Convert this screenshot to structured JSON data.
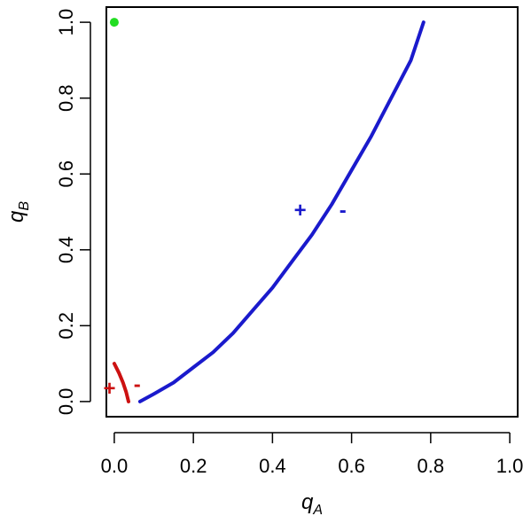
{
  "chart_data": {
    "type": "line",
    "xlabel": {
      "base": "q",
      "sub": "A"
    },
    "ylabel": {
      "base": "q",
      "sub": "B"
    },
    "xlim": [
      -0.02,
      1.02
    ],
    "ylim": [
      -0.04,
      1.04
    ],
    "x_ticks": [
      "0.0",
      "0.2",
      "0.4",
      "0.6",
      "0.8",
      "1.0"
    ],
    "x_tick_values": [
      0,
      0.2,
      0.4,
      0.6,
      0.8,
      1.0
    ],
    "y_ticks": [
      "0.0",
      "0.2",
      "0.4",
      "0.6",
      "0.8",
      "1.0"
    ],
    "y_tick_values": [
      0,
      0.2,
      0.4,
      0.6,
      0.8,
      1.0
    ],
    "grid": false,
    "series": [
      {
        "color": "#1a1acc",
        "points": [
          [
            0.065,
            0.0
          ],
          [
            0.1,
            0.02
          ],
          [
            0.15,
            0.05
          ],
          [
            0.2,
            0.09
          ],
          [
            0.25,
            0.13
          ],
          [
            0.3,
            0.18
          ],
          [
            0.35,
            0.24
          ],
          [
            0.4,
            0.3
          ],
          [
            0.45,
            0.37
          ],
          [
            0.5,
            0.44
          ],
          [
            0.55,
            0.52
          ],
          [
            0.6,
            0.61
          ],
          [
            0.65,
            0.7
          ],
          [
            0.7,
            0.8
          ],
          [
            0.75,
            0.9
          ],
          [
            0.782,
            1.0
          ]
        ]
      },
      {
        "color": "#cc1111",
        "points": [
          [
            0.0,
            0.1
          ],
          [
            0.012,
            0.075
          ],
          [
            0.022,
            0.05
          ],
          [
            0.03,
            0.025
          ],
          [
            0.036,
            0.0
          ]
        ]
      }
    ],
    "point": {
      "x": 0.0,
      "y": 1.0,
      "color": "#22dd22"
    },
    "annotations": [
      {
        "text": "+",
        "x": 0.47,
        "y": 0.505,
        "color": "#1a1acc"
      },
      {
        "text": "-",
        "x": 0.578,
        "y": 0.505,
        "color": "#1a1acc"
      },
      {
        "text": "+",
        "x": -0.012,
        "y": 0.035,
        "color": "#cc1111"
      },
      {
        "text": "-",
        "x": 0.058,
        "y": 0.045,
        "color": "#cc1111"
      }
    ]
  }
}
